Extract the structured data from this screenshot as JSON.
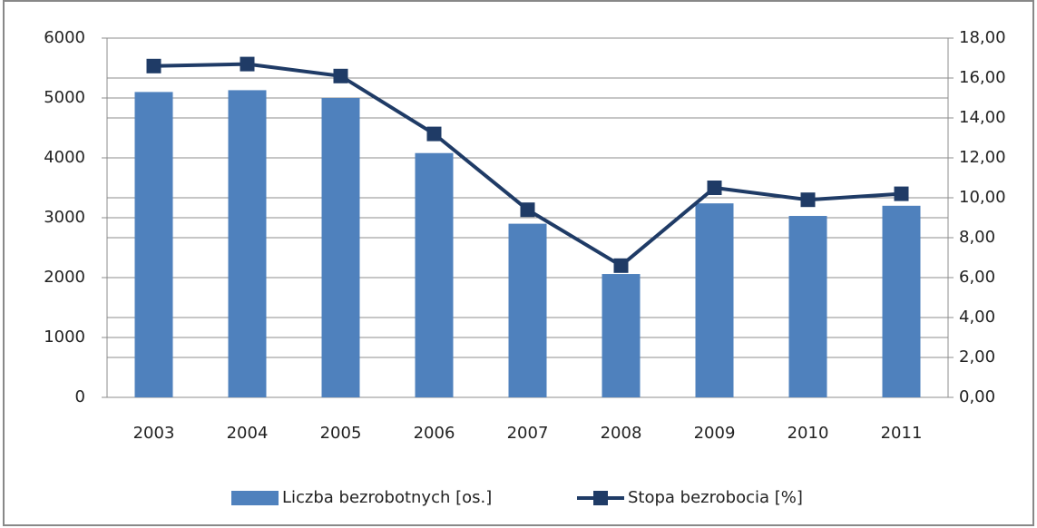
{
  "chart_data": {
    "type": "bar-line",
    "categories": [
      "2003",
      "2004",
      "2005",
      "2006",
      "2007",
      "2008",
      "2009",
      "2010",
      "2011"
    ],
    "series": [
      {
        "name": "Liczba bezrobotnych [os.]",
        "type": "bar",
        "color": "#4f81bd",
        "values": [
          5100,
          5130,
          5000,
          4080,
          2900,
          2060,
          3240,
          3030,
          3200
        ]
      },
      {
        "name": "Stopa bezrobocia [%]",
        "type": "line",
        "axis": "y2",
        "color": "#1f3b66",
        "values": [
          16.6,
          16.7,
          16.1,
          13.2,
          9.4,
          6.6,
          10.5,
          9.9,
          10.2
        ]
      }
    ],
    "ylim": [
      0,
      6000
    ],
    "yticks": [
      0,
      1000,
      2000,
      3000,
      4000,
      5000,
      6000
    ],
    "y2lim": [
      0,
      18
    ],
    "y2ticks": [
      {
        "value": 0,
        "label": "0,00"
      },
      {
        "value": 2,
        "label": "2,00"
      },
      {
        "value": 4,
        "label": "4,00"
      },
      {
        "value": 6,
        "label": "6,00"
      },
      {
        "value": 8,
        "label": "8,00"
      },
      {
        "value": 10,
        "label": "10,00"
      },
      {
        "value": 12,
        "label": "12,00"
      },
      {
        "value": 14,
        "label": "14,00"
      },
      {
        "value": 16,
        "label": "16,00"
      },
      {
        "value": 18,
        "label": "18,00"
      }
    ],
    "grid": true,
    "legend": "bottom"
  }
}
